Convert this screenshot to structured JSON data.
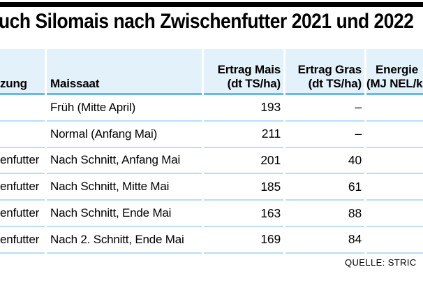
{
  "title": "uch Silomais nach Zwischenfutter 2021 und 2022",
  "colors": {
    "top_bar": "#000000",
    "header_bg": "#e3f1fa",
    "header_rule": "#62bce6",
    "row_rule": "#b5e0f4"
  },
  "table": {
    "headers": [
      {
        "line1": "",
        "line2": "zung"
      },
      {
        "line1": "",
        "line2": "Maissaat"
      },
      {
        "line1": "Ertrag Mais",
        "line2": "(dt TS/ha)"
      },
      {
        "line1": "Ertrag Gras",
        "line2": "(dt TS/ha)"
      },
      {
        "line1": "Energie",
        "line2": "(MJ NEL/k"
      }
    ],
    "rows": [
      {
        "nutzung": "",
        "maissaat": "Früh (Mitte April)",
        "ertrag_mais": "193",
        "ertrag_gras": "–",
        "energie": ""
      },
      {
        "nutzung": "",
        "maissaat": "Normal (Anfang Mai)",
        "ertrag_mais": "211",
        "ertrag_gras": "–",
        "energie": ""
      },
      {
        "nutzung": "enfutter",
        "maissaat": "Nach Schnitt, Anfang Mai",
        "ertrag_mais": "201",
        "ertrag_gras": "40",
        "energie": ""
      },
      {
        "nutzung": "enfutter",
        "maissaat": "Nach Schnitt, Mitte Mai",
        "ertrag_mais": "185",
        "ertrag_gras": "61",
        "energie": ""
      },
      {
        "nutzung": "enfutter",
        "maissaat": "Nach Schnitt, Ende Mai",
        "ertrag_mais": "163",
        "ertrag_gras": "88",
        "energie": ""
      },
      {
        "nutzung": "enfutter",
        "maissaat": "Nach 2. Schnitt, Ende Mai",
        "ertrag_mais": "169",
        "ertrag_gras": "84",
        "energie": ""
      }
    ]
  },
  "footer": {
    "source": "QUELLE: STRIC"
  },
  "chart_data": {
    "type": "table",
    "title": "uch Silomais nach Zwischenfutter 2021 und 2022",
    "columns": [
      "zung",
      "Maissaat",
      "Ertrag Mais (dt TS/ha)",
      "Ertrag Gras (dt TS/ha)",
      "Energie (MJ NEL/k"
    ],
    "rows": [
      [
        "",
        "Früh (Mitte April)",
        193,
        "–",
        ""
      ],
      [
        "",
        "Normal (Anfang Mai)",
        211,
        "–",
        ""
      ],
      [
        "enfutter",
        "Nach Schnitt, Anfang Mai",
        201,
        40,
        ""
      ],
      [
        "enfutter",
        "Nach Schnitt, Mitte Mai",
        185,
        61,
        ""
      ],
      [
        "enfutter",
        "Nach Schnitt, Ende Mai",
        163,
        88,
        ""
      ],
      [
        "enfutter",
        "Nach 2. Schnitt, Ende Mai",
        169,
        84,
        ""
      ]
    ],
    "source": "QUELLE: STRIC",
    "layout": {
      "grid": "horizontal-rules-only",
      "header_background": "#e3f1fa",
      "clipped_edges": [
        "left",
        "right"
      ]
    }
  }
}
